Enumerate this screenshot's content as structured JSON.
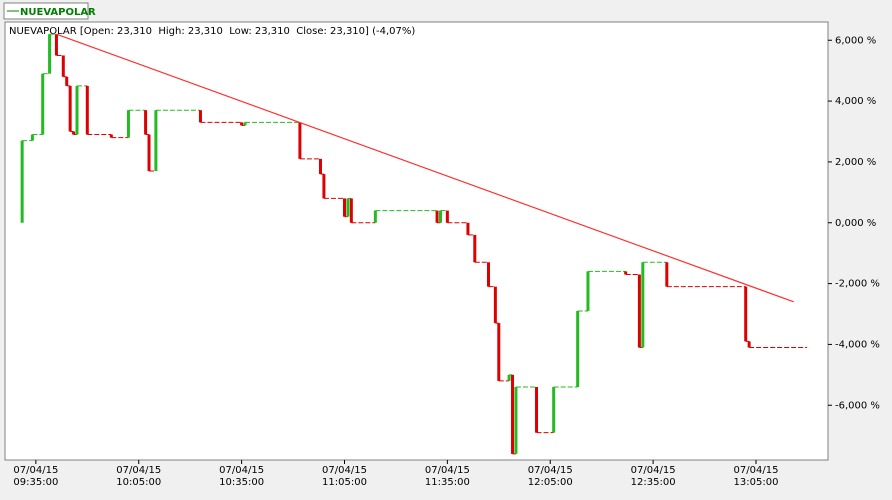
{
  "chart_data": {
    "type": "candlestick",
    "subtitle": "NUEVAPOLAR [Open: 23,310  High: 23,310  Low: 23,310  Close: 23,310] (-4,07%)",
    "series": [
      {
        "name": "NUEVAPOLAR",
        "color": "#008000",
        "up_color": "#22bb22",
        "down_color": "#dd0000",
        "x": [
          "09:31",
          "09:34",
          "09:37",
          "09:39",
          "09:41",
          "09:43",
          "09:44",
          "09:45",
          "09:46",
          "09:47",
          "09:50",
          "09:57",
          "10:02",
          "10:07",
          "10:08",
          "10:10",
          "10:23",
          "10:35",
          "10:36",
          "10:52",
          "10:58",
          "10:59",
          "11:05",
          "11:06",
          "11:07",
          "11:14",
          "11:32",
          "11:33",
          "11:35",
          "11:41",
          "11:43",
          "11:47",
          "11:49",
          "11:50",
          "11:53",
          "11:54",
          "11:55",
          "12:01",
          "12:06",
          "12:13",
          "12:16",
          "12:27",
          "12:31",
          "12:32",
          "12:39",
          "13:02",
          "13:03"
        ],
        "open": [
          0,
          2.7,
          2.9,
          4.9,
          6.2,
          5.5,
          4.8,
          4.5,
          3.0,
          2.9,
          4.5,
          2.9,
          2.8,
          3.7,
          2.9,
          1.7,
          3.7,
          3.3,
          3.2,
          3.3,
          2.1,
          1.6,
          0.8,
          0.2,
          0.8,
          0,
          0.4,
          0,
          0.4,
          0,
          -0.4,
          -1.3,
          -2.1,
          -3.3,
          -5.2,
          -5.0,
          -7.6,
          -5.4,
          -6.9,
          -5.4,
          -2.9,
          -1.6,
          -1.7,
          -4.1,
          -1.3,
          -2.1,
          -3.9
        ],
        "close": [
          2.7,
          2.9,
          4.9,
          6.2,
          5.5,
          4.8,
          4.5,
          3.0,
          2.9,
          4.5,
          2.9,
          2.8,
          3.7,
          2.9,
          1.7,
          3.7,
          3.3,
          3.2,
          3.3,
          2.1,
          1.6,
          0.8,
          0.2,
          0.8,
          0,
          0.4,
          0,
          0.4,
          0,
          -0.4,
          -1.3,
          -2.1,
          -3.3,
          -5.2,
          -5.0,
          -7.6,
          -5.4,
          -6.9,
          -5.4,
          -2.9,
          -1.6,
          -1.7,
          -4.1,
          -1.3,
          -2.1,
          -3.9,
          -4.1
        ]
      }
    ],
    "trendline": {
      "x": [
        "09:41",
        "13:16"
      ],
      "values": [
        6.2,
        -2.6
      ],
      "color": "#ff3030"
    },
    "xlim": [
      "09:26",
      "13:26"
    ],
    "xticks": [
      {
        "value": "09:35",
        "label": "07/04/15 09:35:00"
      },
      {
        "value": "10:05",
        "label": "07/04/15 10:05:00"
      },
      {
        "value": "10:35",
        "label": "07/04/15 10:35:00"
      },
      {
        "value": "11:05",
        "label": "07/04/15 11:05:00"
      },
      {
        "value": "11:35",
        "label": "07/04/15 11:35:00"
      },
      {
        "value": "12:05",
        "label": "07/04/15 12:05:00"
      },
      {
        "value": "12:35",
        "label": "07/04/15 12:35:00"
      },
      {
        "value": "13:05",
        "label": "07/04/15 13:05:00"
      }
    ],
    "ylim": [
      -7.8,
      6.6
    ],
    "yticks": [
      {
        "value": 6,
        "label": "6,000 %"
      },
      {
        "value": 4,
        "label": "4,000 %"
      },
      {
        "value": 2,
        "label": "2,000 %"
      },
      {
        "value": 0,
        "label": "0,000 %"
      },
      {
        "value": -2,
        "label": "-2,000 %"
      },
      {
        "value": -4,
        "label": "-4,000 %"
      },
      {
        "value": -6,
        "label": "-6,000 %"
      }
    ]
  }
}
